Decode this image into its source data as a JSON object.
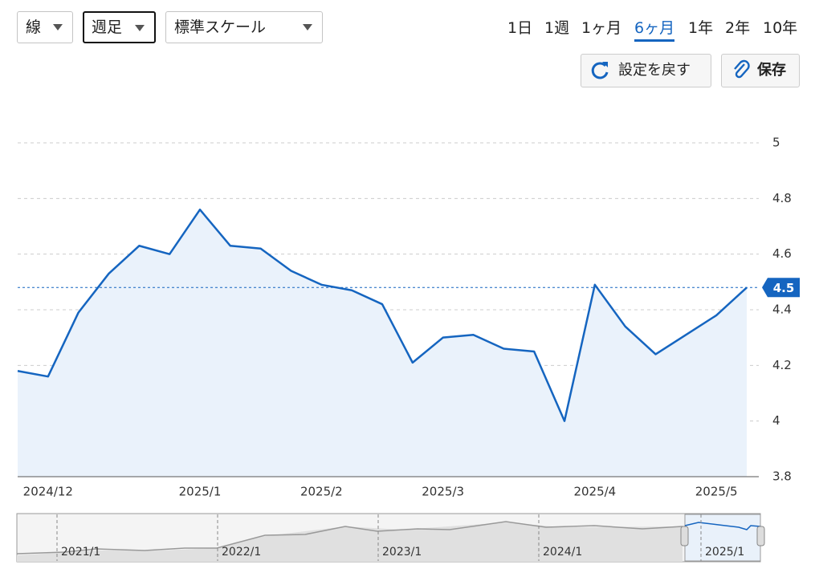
{
  "controls": {
    "dropdowns": [
      "線",
      "週足",
      "標準スケール"
    ],
    "ranges": [
      "1日",
      "1週",
      "1ヶ月",
      "6ヶ月",
      "1年",
      "2年",
      "10年"
    ],
    "reset": "設定を戻す",
    "save": "保存"
  },
  "chart_data": {
    "type": "line",
    "categories": [
      null,
      "2024/12",
      null,
      null,
      null,
      null,
      "2025/1",
      null,
      null,
      null,
      "2025/2",
      null,
      null,
      null,
      "2025/3",
      null,
      null,
      null,
      null,
      "2025/4",
      null,
      null,
      null,
      "2025/5",
      null
    ],
    "series": [
      {
        "color": "#1565c0",
        "values": [
          4.18,
          4.16,
          4.39,
          4.53,
          4.63,
          4.6,
          4.76,
          4.63,
          4.62,
          4.54,
          4.49,
          4.47,
          4.42,
          4.21,
          4.3,
          4.31,
          4.26,
          4.25,
          4.0,
          4.49,
          4.34,
          4.24,
          4.31,
          4.38,
          4.48
        ]
      }
    ],
    "current": {
      "value": 4.48,
      "label": "4.5"
    },
    "ylim": [
      3.8,
      5
    ],
    "yticks": [
      3.8,
      4,
      4.2,
      4.4,
      4.6,
      4.8,
      5
    ],
    "grid": true,
    "navigator": {
      "labels": [
        "2021/1",
        "2022/1",
        "2023/1",
        "2024/1",
        "2025/1"
      ]
    }
  }
}
